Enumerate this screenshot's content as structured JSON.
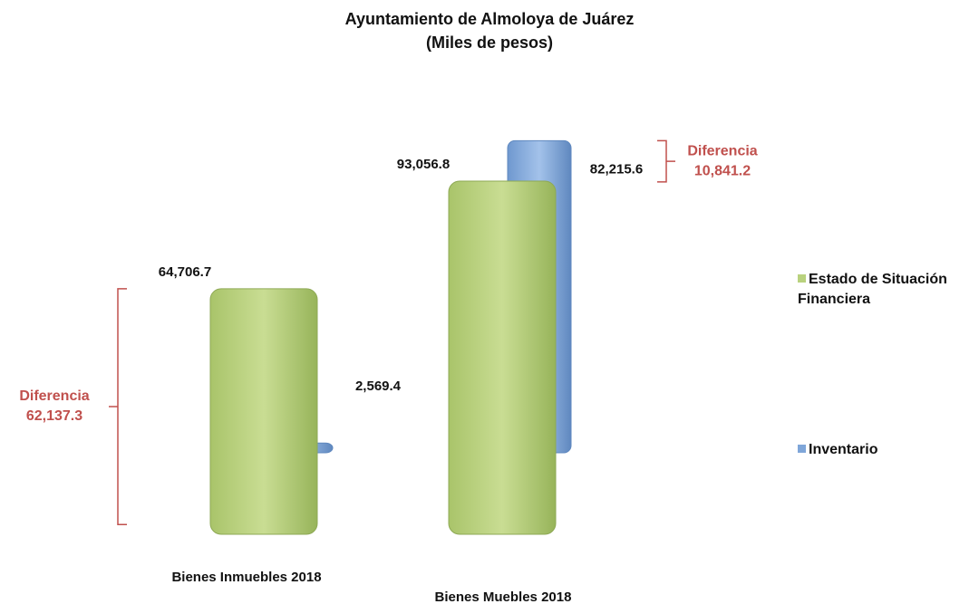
{
  "chart_data": {
    "type": "bar3d",
    "title": "Ayuntamiento de Almoloya de Juárez",
    "subtitle": "(Miles de pesos)",
    "categories": [
      "Bienes Inmuebles 2018",
      "Bienes Muebles 2018"
    ],
    "series": [
      {
        "name": "Estado de Situación Financiera",
        "color": "#b9d27e",
        "values": [
          64706.7,
          93056.8
        ],
        "value_labels": [
          "64,706.7",
          "93,056.8"
        ]
      },
      {
        "name": "Inventario",
        "color": "#7fa6d9",
        "values": [
          2569.4,
          82215.6
        ],
        "value_labels": [
          "2,569.4",
          "82,215.6"
        ]
      }
    ],
    "annotations": [
      {
        "text": "Diferencia",
        "value": 62137.3,
        "value_label": "62,137.3"
      },
      {
        "text": "Diferencia",
        "value": 10841.2,
        "value_label": "10,841.2"
      }
    ],
    "legend": "right"
  }
}
